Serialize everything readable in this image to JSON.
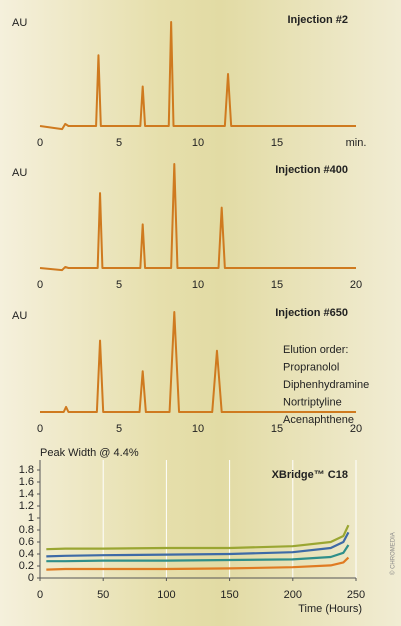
{
  "chart_data": [
    {
      "type": "line",
      "title": "Injection #2",
      "ylabel": "AU",
      "color": "#cf7a1f",
      "x": [
        0,
        1.4,
        1.6,
        1.8,
        3.55,
        3.7,
        3.85,
        6.35,
        6.5,
        6.65,
        8.15,
        8.3,
        8.45,
        11.7,
        11.9,
        12.1,
        20
      ],
      "values": [
        0,
        -0.03,
        0.02,
        0,
        0,
        0.68,
        0,
        0,
        0.38,
        0,
        0,
        1.0,
        0,
        0,
        0.5,
        0,
        0
      ],
      "xlim": [
        0,
        20
      ],
      "xticks": [
        0,
        5,
        10,
        15,
        {
          "value": 20,
          "label": "min."
        }
      ],
      "ylim": [
        0,
        1
      ]
    },
    {
      "type": "line",
      "title": "Injection #400",
      "ylabel": "AU",
      "color": "#cf7a1f",
      "x": [
        0,
        1.4,
        1.6,
        1.8,
        3.65,
        3.8,
        3.95,
        6.35,
        6.5,
        6.65,
        8.3,
        8.5,
        8.7,
        11.3,
        11.5,
        11.7,
        20
      ],
      "values": [
        0,
        -0.02,
        0.01,
        0,
        0,
        0.72,
        0,
        0,
        0.42,
        0,
        0,
        1.0,
        0,
        0,
        0.58,
        0,
        0
      ],
      "xlim": [
        0,
        20
      ],
      "xticks": [
        0,
        5,
        10,
        15,
        20
      ],
      "ylim": [
        0,
        1
      ]
    },
    {
      "type": "line",
      "title": "Injection #650",
      "ylabel": "AU",
      "color": "#cf7a1f",
      "annotations": [
        "Elution order:",
        "Propranolol",
        "Diphenhydramine",
        "Nortriptyline",
        "Acenaphthene"
      ],
      "x": [
        0,
        1.5,
        1.65,
        1.8,
        3.6,
        3.8,
        4.0,
        6.3,
        6.5,
        6.7,
        8.2,
        8.5,
        8.8,
        10.9,
        11.2,
        11.5,
        20
      ],
      "values": [
        0,
        0,
        0.05,
        0,
        0,
        0.7,
        0,
        0,
        0.4,
        0,
        0,
        0.98,
        0,
        0,
        0.6,
        0,
        0
      ],
      "xlim": [
        0,
        20
      ],
      "xticks": [
        0,
        5,
        10,
        15,
        20
      ],
      "ylim": [
        0,
        1
      ]
    },
    {
      "type": "line",
      "title": "XBridge™ C18",
      "ylabel": "Peak Width @ 4.4%",
      "xlabel": "Time (Hours)",
      "x": [
        5,
        20,
        50,
        100,
        150,
        200,
        230,
        240,
        244
      ],
      "series": [
        {
          "color": "#9aa632",
          "values": [
            0.48,
            0.49,
            0.49,
            0.5,
            0.5,
            0.53,
            0.6,
            0.7,
            0.88
          ]
        },
        {
          "color": "#3e6aa6",
          "values": [
            0.36,
            0.37,
            0.38,
            0.39,
            0.4,
            0.43,
            0.5,
            0.6,
            0.76
          ]
        },
        {
          "color": "#2f8f8a",
          "values": [
            0.28,
            0.28,
            0.29,
            0.29,
            0.3,
            0.31,
            0.35,
            0.42,
            0.55
          ]
        },
        {
          "color": "#e07b22",
          "values": [
            0.14,
            0.15,
            0.15,
            0.15,
            0.16,
            0.18,
            0.21,
            0.26,
            0.34
          ]
        }
      ],
      "xlim": [
        0,
        250
      ],
      "xticks": [
        0,
        50,
        100,
        150,
        200,
        250
      ],
      "ylim": [
        0,
        1.8
      ],
      "yticks": [
        0,
        0.2,
        0.4,
        0.6,
        0.8,
        1,
        1.2,
        1.4,
        1.6,
        1.8
      ],
      "grid": "x"
    }
  ],
  "credit": "© CHROMEDIA"
}
